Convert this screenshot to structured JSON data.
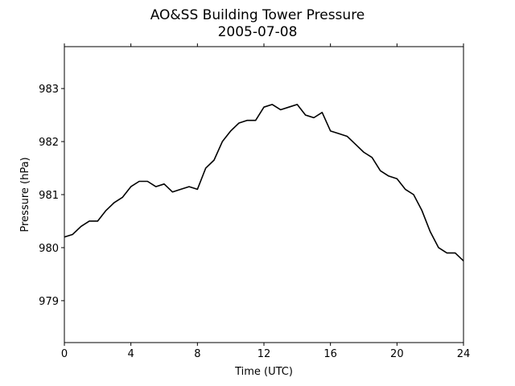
{
  "chart_data": {
    "type": "line",
    "title": "AO&SS Building Tower Pressure",
    "subtitle": "2005-07-08",
    "x_label": "Time (UTC)",
    "y_label": "Pressure (hPa)",
    "x": [
      0,
      0.5,
      1,
      1.5,
      2,
      2.5,
      3,
      3.5,
      4,
      4.5,
      5,
      5.5,
      6,
      6.5,
      7,
      7.5,
      8,
      8.5,
      9,
      9.5,
      10,
      10.5,
      11,
      11.5,
      12,
      12.5,
      13,
      13.5,
      14,
      14.5,
      15,
      15.5,
      16,
      16.5,
      17,
      17.5,
      18,
      18.5,
      19,
      19.5,
      20,
      20.5,
      21,
      21.5,
      22,
      22.5,
      23,
      23.5,
      24
    ],
    "series": [
      {
        "name": "Pressure",
        "color": "#000000",
        "values": [
          980.2,
          980.25,
          980.4,
          980.5,
          980.5,
          980.7,
          980.85,
          980.95,
          981.15,
          981.25,
          981.25,
          981.15,
          981.2,
          981.05,
          981.1,
          981.15,
          981.1,
          981.5,
          981.65,
          982.0,
          982.2,
          982.35,
          982.4,
          982.4,
          982.65,
          982.7,
          982.6,
          982.65,
          982.7,
          982.5,
          982.45,
          982.55,
          982.2,
          982.15,
          982.1,
          981.95,
          981.8,
          981.7,
          981.45,
          981.35,
          981.3,
          981.1,
          981.0,
          980.7,
          980.3,
          980.0,
          979.9,
          979.9,
          979.75
        ]
      }
    ],
    "xlim": [
      0,
      24
    ],
    "xticks": [
      0,
      4,
      8,
      12,
      16,
      20,
      24
    ],
    "ylim": [
      978.21,
      983.79
    ],
    "yticks": [
      979,
      980,
      981,
      982,
      983
    ]
  }
}
